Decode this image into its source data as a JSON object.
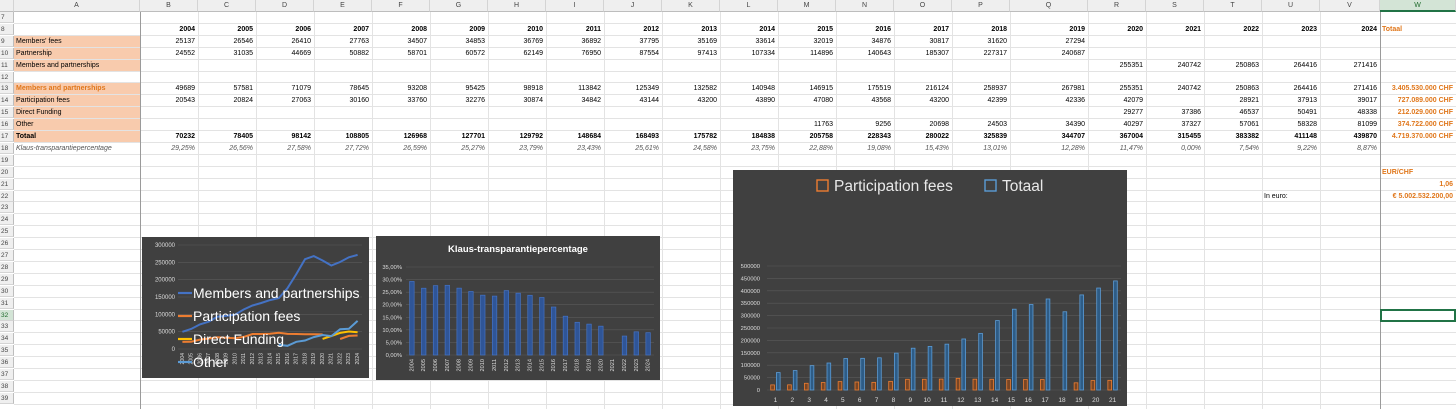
{
  "columns": [
    "A",
    "B",
    "C",
    "D",
    "E",
    "F",
    "G",
    "H",
    "I",
    "J",
    "K",
    "L",
    "M",
    "N",
    "O",
    "P",
    "Q",
    "R",
    "S",
    "T",
    "U",
    "V",
    "W"
  ],
  "rows": [
    "7",
    "8",
    "9",
    "10",
    "11",
    "12",
    "13",
    "14",
    "15",
    "16",
    "17",
    "18",
    "19",
    "20",
    "21",
    "22",
    "23",
    "24",
    "25",
    "26",
    "27",
    "28",
    "29",
    "30",
    "31",
    "32",
    "33",
    "34",
    "35",
    "36",
    "37",
    "38",
    "39"
  ],
  "selected_column": "W",
  "selected_row": "32",
  "years": [
    "2004",
    "2005",
    "2006",
    "2007",
    "2008",
    "2009",
    "2010",
    "2011",
    "2012",
    "2013",
    "2014",
    "2015",
    "2016",
    "2017",
    "2018",
    "2019",
    "2020",
    "2021",
    "2022",
    "2023",
    "2024"
  ],
  "header_totaal": "Totaal",
  "row9": {
    "label": "Members' fees",
    "values": [
      "25137",
      "26546",
      "26410",
      "27763",
      "34507",
      "34853",
      "36769",
      "36892",
      "37795",
      "35169",
      "33614",
      "32019",
      "34876",
      "30817",
      "31620",
      "27294",
      "",
      "",
      "",
      "",
      ""
    ]
  },
  "row10": {
    "label": "Partnership",
    "values": [
      "24552",
      "31035",
      "44669",
      "50882",
      "58701",
      "60572",
      "62149",
      "76950",
      "87554",
      "97413",
      "107334",
      "114896",
      "140643",
      "185307",
      "227317",
      "240687",
      "",
      "",
      "",
      "",
      ""
    ]
  },
  "row11": {
    "label": "Members and partnerships",
    "values": [
      "",
      "",
      "",
      "",
      "",
      "",
      "",
      "",
      "",
      "",
      "",
      "",
      "",
      "",
      "",
      "",
      "255351",
      "240742",
      "250863",
      "264416",
      "271416"
    ]
  },
  "row13": {
    "label": "Members and partnerships",
    "values": [
      "49689",
      "57581",
      "71079",
      "78645",
      "93208",
      "95425",
      "98918",
      "113842",
      "125349",
      "132582",
      "140948",
      "146915",
      "175519",
      "216124",
      "258937",
      "267981",
      "255351",
      "240742",
      "250863",
      "264416",
      "271416"
    ],
    "total": "3.405.530.000 CHF"
  },
  "row14": {
    "label": "Participation fees",
    "values": [
      "20543",
      "20824",
      "27063",
      "30160",
      "33760",
      "32276",
      "30874",
      "34842",
      "43144",
      "43200",
      "43890",
      "47080",
      "43568",
      "43200",
      "42399",
      "42336",
      "42079",
      "",
      "28921",
      "37913",
      "39017"
    ],
    "total": "727.089.000 CHF"
  },
  "row15": {
    "label": "Direct Funding",
    "values": [
      "",
      "",
      "",
      "",
      "",
      "",
      "",
      "",
      "",
      "",
      "",
      "",
      "",
      "",
      "",
      "",
      "29277",
      "37386",
      "46537",
      "50491",
      "48338"
    ],
    "total": "212.029.000 CHF"
  },
  "row16": {
    "label": "Other",
    "values": [
      "",
      "",
      "",
      "",
      "",
      "",
      "",
      "",
      "",
      "",
      "",
      "11763",
      "9256",
      "20698",
      "24503",
      "34390",
      "40297",
      "37327",
      "57061",
      "58328",
      "81099"
    ],
    "total": "374.722.000 CHF"
  },
  "row17": {
    "label": "Totaal",
    "values": [
      "70232",
      "78405",
      "98142",
      "108805",
      "126968",
      "127701",
      "129792",
      "148684",
      "168493",
      "175782",
      "184838",
      "205758",
      "228343",
      "280022",
      "325839",
      "344707",
      "367004",
      "315455",
      "383382",
      "411148",
      "439870"
    ],
    "total": "4.719.370.000 CHF"
  },
  "row18": {
    "label": "Klaus-transparantiepercentage",
    "values": [
      "29,25%",
      "26,56%",
      "27,58%",
      "27,72%",
      "26,59%",
      "25,27%",
      "23,79%",
      "23,43%",
      "25,61%",
      "24,58%",
      "23,75%",
      "22,88%",
      "19,08%",
      "15,43%",
      "13,01%",
      "12,28%",
      "11,47%",
      "0,00%",
      "7,54%",
      "9,22%",
      "8,87%"
    ]
  },
  "rate_label": "EUR/CHF",
  "rate_value": "1,06",
  "in_euro_label": "In euro:",
  "in_euro_value": "€ 5.002.532.200,00",
  "colors": {
    "orange": "#e0771b",
    "peach": "#f8cbad",
    "blue": "#4472c4",
    "chart_bg": "#404040",
    "excel_green": "#217346"
  },
  "chart_data": [
    {
      "type": "line",
      "x": [
        "2004",
        "2005",
        "2006",
        "2007",
        "2008",
        "2009",
        "2010",
        "2011",
        "2012",
        "2013",
        "2014",
        "2015",
        "2016",
        "2017",
        "2018",
        "2019",
        "2020",
        "2021",
        "2022",
        "2023",
        "2024"
      ],
      "ylim": [
        0,
        300000
      ],
      "yticks": [
        "300000",
        "250000",
        "200000",
        "150000",
        "100000",
        "50000",
        "0"
      ],
      "legend_position": "bottom",
      "series": [
        {
          "name": "Members and partnerships",
          "color": "#4472c4",
          "values": [
            49689,
            57581,
            71079,
            78645,
            93208,
            95425,
            98918,
            113842,
            125349,
            132582,
            140948,
            146915,
            175519,
            216124,
            258937,
            267981,
            255351,
            240742,
            250863,
            264416,
            271416
          ]
        },
        {
          "name": "Participation fees",
          "color": "#ed7d31",
          "values": [
            20543,
            20824,
            27063,
            30160,
            33760,
            32276,
            30874,
            34842,
            43144,
            43200,
            43890,
            47080,
            43568,
            43200,
            42399,
            42336,
            42079,
            null,
            28921,
            37913,
            39017
          ]
        },
        {
          "name": "Direct Funding",
          "color": "#ffc000",
          "values": [
            null,
            null,
            null,
            null,
            null,
            null,
            null,
            null,
            null,
            null,
            null,
            null,
            null,
            null,
            null,
            null,
            29277,
            37386,
            46537,
            50491,
            48338
          ]
        },
        {
          "name": "Other",
          "color": "#5b9bd5",
          "values": [
            null,
            null,
            null,
            null,
            null,
            null,
            null,
            null,
            null,
            null,
            null,
            11763,
            9256,
            20698,
            24503,
            34390,
            40297,
            37327,
            57061,
            58328,
            81099
          ]
        }
      ]
    },
    {
      "type": "bar",
      "title": "Klaus-transparantiepercentage",
      "categories": [
        "2004",
        "2005",
        "2006",
        "2007",
        "2008",
        "2009",
        "2010",
        "2011",
        "2012",
        "2013",
        "2014",
        "2015",
        "2016",
        "2017",
        "2018",
        "2019",
        "2020",
        "2021",
        "2022",
        "2023",
        "2024"
      ],
      "values": [
        29.25,
        26.56,
        27.58,
        27.72,
        26.59,
        25.27,
        23.79,
        23.43,
        25.61,
        24.58,
        23.75,
        22.88,
        19.08,
        15.43,
        13.01,
        12.28,
        11.47,
        0.0,
        7.54,
        9.22,
        8.87
      ],
      "ylim": [
        0,
        35
      ],
      "yticks": [
        "35,00%",
        "30,00%",
        "25,00%",
        "20,00%",
        "15,00%",
        "10,00%",
        "5,00%",
        "0,00%"
      ],
      "color": "#4472c4"
    },
    {
      "type": "bar",
      "categories": [
        "1",
        "2",
        "3",
        "4",
        "5",
        "6",
        "7",
        "8",
        "9",
        "10",
        "11",
        "12",
        "13",
        "14",
        "15",
        "16",
        "17",
        "18",
        "19",
        "20",
        "21"
      ],
      "ylim": [
        0,
        500000
      ],
      "yticks": [
        "500000",
        "450000",
        "400000",
        "350000",
        "300000",
        "250000",
        "200000",
        "150000",
        "100000",
        "50000",
        "0"
      ],
      "legend_position": "top",
      "series": [
        {
          "name": "Participation fees",
          "color": "#ed7d31",
          "values": [
            20543,
            20824,
            27063,
            30160,
            33760,
            32276,
            30874,
            34842,
            43144,
            43200,
            43890,
            47080,
            43568,
            43200,
            42399,
            42336,
            42079,
            0,
            28921,
            37913,
            39017
          ]
        },
        {
          "name": "Totaal",
          "color": "#5b9bd5",
          "values": [
            70232,
            78405,
            98142,
            108805,
            126968,
            127701,
            129792,
            148684,
            168493,
            175782,
            184838,
            205758,
            228343,
            280022,
            325839,
            344707,
            367004,
            315455,
            383382,
            411148,
            439870
          ]
        }
      ]
    }
  ]
}
